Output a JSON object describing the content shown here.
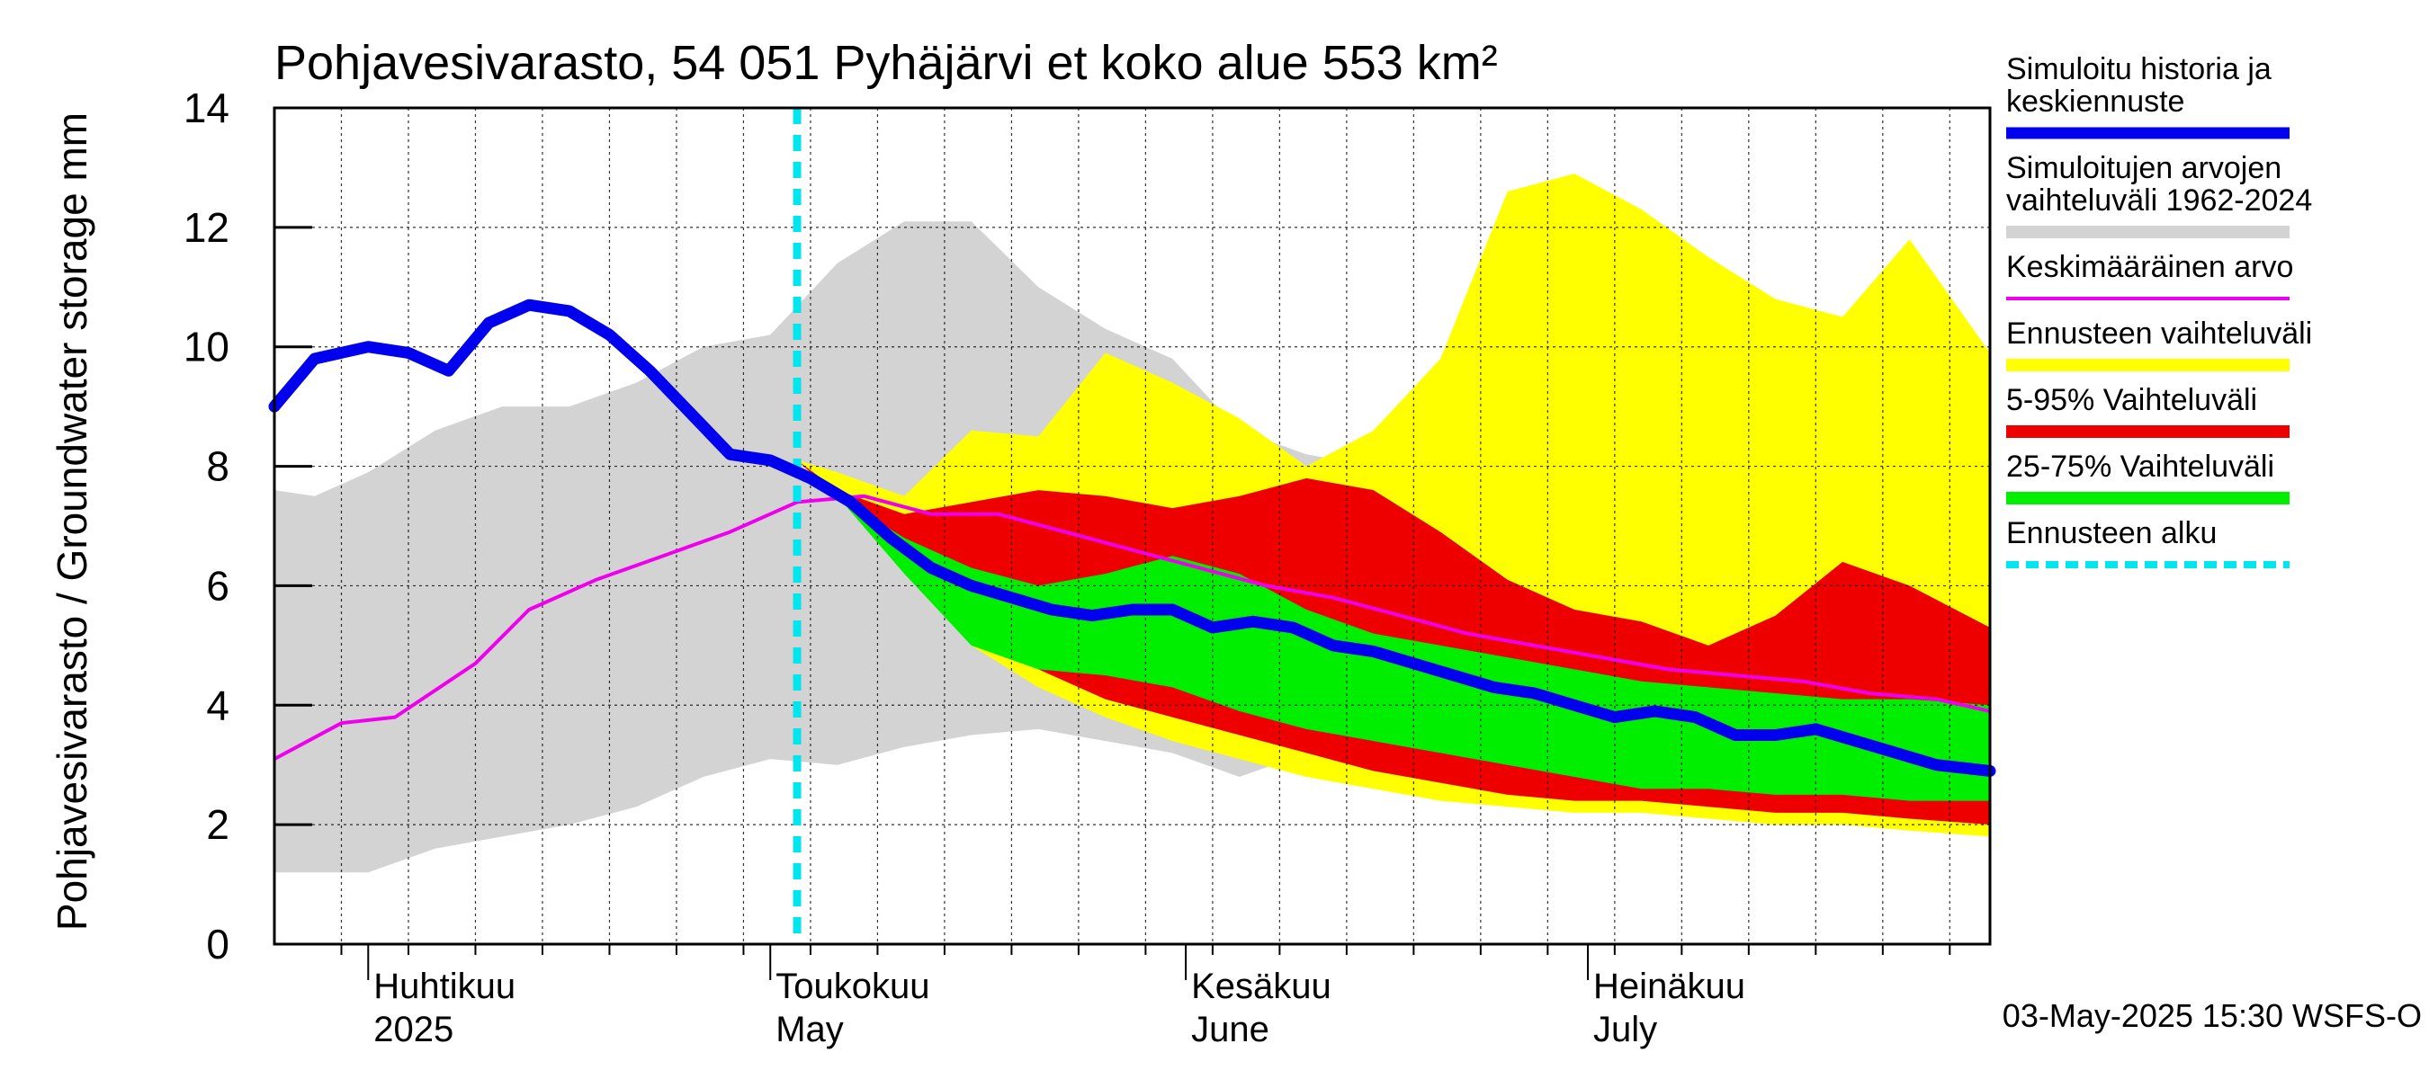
{
  "chart_data": {
    "type": "area",
    "title": "Pohjavesivarasto, 54 051 Pyhäjärvi et koko alue 553 km²",
    "ylabel": "Pohjavesivarasto / Groundwater storage   mm",
    "ylim": [
      0,
      14
    ],
    "yticks": [
      0,
      2,
      4,
      6,
      8,
      10,
      12,
      14
    ],
    "xlim": [
      "2025-03-25",
      "2025-07-31"
    ],
    "forecast_start": "2025-05-03",
    "grid": true,
    "legend_position": "right",
    "month_labels": [
      {
        "line1": "Huhtikuu",
        "line2": "2025",
        "date": "2025-04-01"
      },
      {
        "line1": "Toukokuu",
        "line2": "May",
        "date": "2025-05-01"
      },
      {
        "line1": "Kesäkuu",
        "line2": "June",
        "date": "2025-06-01"
      },
      {
        "line1": "Heinäkuu",
        "line2": "July",
        "date": "2025-07-01"
      }
    ],
    "legend": [
      {
        "label": "Simuloitu historia ja keskiennuste",
        "color": "#0000ee",
        "style": "thick"
      },
      {
        "label": "Simuloitujen arvojen vaihteluväli 1962-2024",
        "color": "#d3d3d3",
        "style": "band"
      },
      {
        "label": "Keskimääräinen arvo",
        "color": "#ee00ee",
        "style": "line"
      },
      {
        "label": "Ennusteen vaihteluväli",
        "color": "#ffff00",
        "style": "band"
      },
      {
        "label": "5-95% Vaihteluväli",
        "color": "#ee0000",
        "style": "band"
      },
      {
        "label": "25-75% Vaihteluväli",
        "color": "#00ee00",
        "style": "band"
      },
      {
        "label": "Ennusteen alku",
        "color": "#00e5ee",
        "style": "dashed"
      }
    ],
    "series": {
      "history_range": {
        "x": [
          "2025-03-25",
          "2025-03-28",
          "2025-04-01",
          "2025-04-06",
          "2025-04-11",
          "2025-04-16",
          "2025-04-21",
          "2025-04-26",
          "2025-05-01",
          "2025-05-06",
          "2025-05-11",
          "2025-05-16",
          "2025-05-21",
          "2025-05-26",
          "2025-05-31",
          "2025-06-05",
          "2025-06-10",
          "2025-06-15",
          "2025-06-20",
          "2025-06-25",
          "2025-06-30",
          "2025-07-05",
          "2025-07-10",
          "2025-07-15",
          "2025-07-20",
          "2025-07-25",
          "2025-07-31"
        ],
        "lower": [
          1.2,
          1.2,
          1.2,
          1.6,
          1.8,
          2.0,
          2.3,
          2.8,
          3.1,
          3.0,
          3.3,
          3.5,
          3.6,
          3.4,
          3.2,
          2.8,
          3.2,
          3.0,
          2.9,
          2.8,
          2.6,
          2.5,
          2.4,
          2.3,
          2.3,
          2.2,
          2.2
        ],
        "upper": [
          7.6,
          7.5,
          7.9,
          8.6,
          9.0,
          9.0,
          9.4,
          10.0,
          10.2,
          11.4,
          12.1,
          12.1,
          11.0,
          10.3,
          9.8,
          8.6,
          8.2,
          8.0,
          8.6,
          8.8,
          8.4,
          9.2,
          9.6,
          9.3,
          9.0,
          9.2,
          8.6
        ]
      },
      "forecast_range": {
        "x": [
          "2025-05-03",
          "2025-05-06",
          "2025-05-11",
          "2025-05-16",
          "2025-05-21",
          "2025-05-26",
          "2025-05-31",
          "2025-06-05",
          "2025-06-10",
          "2025-06-15",
          "2025-06-20",
          "2025-06-25",
          "2025-06-30",
          "2025-07-05",
          "2025-07-10",
          "2025-07-15",
          "2025-07-20",
          "2025-07-25",
          "2025-07-31"
        ],
        "lower": [
          8.1,
          7.5,
          6.3,
          5.0,
          4.3,
          3.8,
          3.4,
          3.1,
          2.8,
          2.6,
          2.4,
          2.3,
          2.2,
          2.2,
          2.1,
          2.0,
          2.0,
          1.9,
          1.8
        ],
        "upper": [
          8.1,
          7.9,
          7.5,
          8.6,
          8.5,
          9.9,
          9.4,
          8.8,
          8.0,
          8.6,
          9.8,
          12.6,
          12.9,
          12.3,
          11.5,
          10.8,
          10.5,
          11.8,
          9.9
        ]
      },
      "p5_95": {
        "x": [
          "2025-05-03",
          "2025-05-06",
          "2025-05-11",
          "2025-05-16",
          "2025-05-21",
          "2025-05-26",
          "2025-05-31",
          "2025-06-05",
          "2025-06-10",
          "2025-06-15",
          "2025-06-20",
          "2025-06-25",
          "2025-06-30",
          "2025-07-05",
          "2025-07-10",
          "2025-07-15",
          "2025-07-20",
          "2025-07-25",
          "2025-07-31"
        ],
        "lower": [
          8.1,
          7.5,
          6.5,
          5.2,
          4.6,
          4.1,
          3.8,
          3.5,
          3.2,
          2.9,
          2.7,
          2.5,
          2.4,
          2.4,
          2.3,
          2.2,
          2.2,
          2.1,
          2.0
        ],
        "upper": [
          8.1,
          7.6,
          7.2,
          7.4,
          7.6,
          7.5,
          7.3,
          7.5,
          7.8,
          7.6,
          6.9,
          6.1,
          5.6,
          5.4,
          5.0,
          5.5,
          6.4,
          6.0,
          5.3
        ]
      },
      "p25_75": {
        "x": [
          "2025-05-03",
          "2025-05-06",
          "2025-05-11",
          "2025-05-16",
          "2025-05-21",
          "2025-05-26",
          "2025-05-31",
          "2025-06-05",
          "2025-06-10",
          "2025-06-15",
          "2025-06-20",
          "2025-06-25",
          "2025-06-30",
          "2025-07-05",
          "2025-07-10",
          "2025-07-15",
          "2025-07-20",
          "2025-07-25",
          "2025-07-31"
        ],
        "lower": [
          8.1,
          7.5,
          6.2,
          5.0,
          4.6,
          4.5,
          4.3,
          3.9,
          3.6,
          3.4,
          3.2,
          3.0,
          2.8,
          2.6,
          2.6,
          2.5,
          2.5,
          2.4,
          2.4
        ],
        "upper": [
          8.1,
          7.5,
          6.8,
          6.3,
          6.0,
          6.2,
          6.5,
          6.2,
          5.6,
          5.2,
          5.0,
          4.8,
          4.6,
          4.4,
          4.3,
          4.2,
          4.1,
          4.1,
          4.0
        ]
      },
      "mean": {
        "x": [
          "2025-03-25",
          "2025-03-30",
          "2025-04-03",
          "2025-04-09",
          "2025-04-13",
          "2025-04-18",
          "2025-04-23",
          "2025-04-28",
          "2025-05-03",
          "2025-05-08",
          "2025-05-13",
          "2025-05-18",
          "2025-05-23",
          "2025-05-28",
          "2025-06-02",
          "2025-06-07",
          "2025-06-12",
          "2025-06-17",
          "2025-06-22",
          "2025-06-27",
          "2025-07-02",
          "2025-07-07",
          "2025-07-12",
          "2025-07-17",
          "2025-07-22",
          "2025-07-27",
          "2025-07-31"
        ],
        "y": [
          3.1,
          3.7,
          3.8,
          4.7,
          5.6,
          6.1,
          6.5,
          6.9,
          7.4,
          7.5,
          7.2,
          7.2,
          6.9,
          6.6,
          6.3,
          6.0,
          5.8,
          5.5,
          5.2,
          5.0,
          4.8,
          4.6,
          4.5,
          4.4,
          4.2,
          4.1,
          3.9
        ]
      },
      "simulated": {
        "x": [
          "2025-03-25",
          "2025-03-28",
          "2025-04-01",
          "2025-04-04",
          "2025-04-07",
          "2025-04-10",
          "2025-04-13",
          "2025-04-16",
          "2025-04-19",
          "2025-04-22",
          "2025-04-25",
          "2025-04-28",
          "2025-05-01",
          "2025-05-04",
          "2025-05-07",
          "2025-05-10",
          "2025-05-13",
          "2025-05-16",
          "2025-05-19",
          "2025-05-22",
          "2025-05-25",
          "2025-05-28",
          "2025-05-31",
          "2025-06-03",
          "2025-06-06",
          "2025-06-09",
          "2025-06-12",
          "2025-06-15",
          "2025-06-18",
          "2025-06-21",
          "2025-06-24",
          "2025-06-27",
          "2025-06-30",
          "2025-07-03",
          "2025-07-06",
          "2025-07-09",
          "2025-07-12",
          "2025-07-15",
          "2025-07-18",
          "2025-07-21",
          "2025-07-24",
          "2025-07-27",
          "2025-07-31"
        ],
        "y": [
          9.0,
          9.8,
          10.0,
          9.9,
          9.6,
          10.4,
          10.7,
          10.6,
          10.2,
          9.6,
          8.9,
          8.2,
          8.1,
          7.8,
          7.4,
          6.8,
          6.3,
          6.0,
          5.8,
          5.6,
          5.5,
          5.6,
          5.6,
          5.3,
          5.4,
          5.3,
          5.0,
          4.9,
          4.7,
          4.5,
          4.3,
          4.2,
          4.0,
          3.8,
          3.9,
          3.8,
          3.5,
          3.5,
          3.6,
          3.4,
          3.2,
          3.0,
          2.9
        ]
      }
    }
  },
  "footer": {
    "timestamp": "03-May-2025 15:30 WSFS-O"
  }
}
